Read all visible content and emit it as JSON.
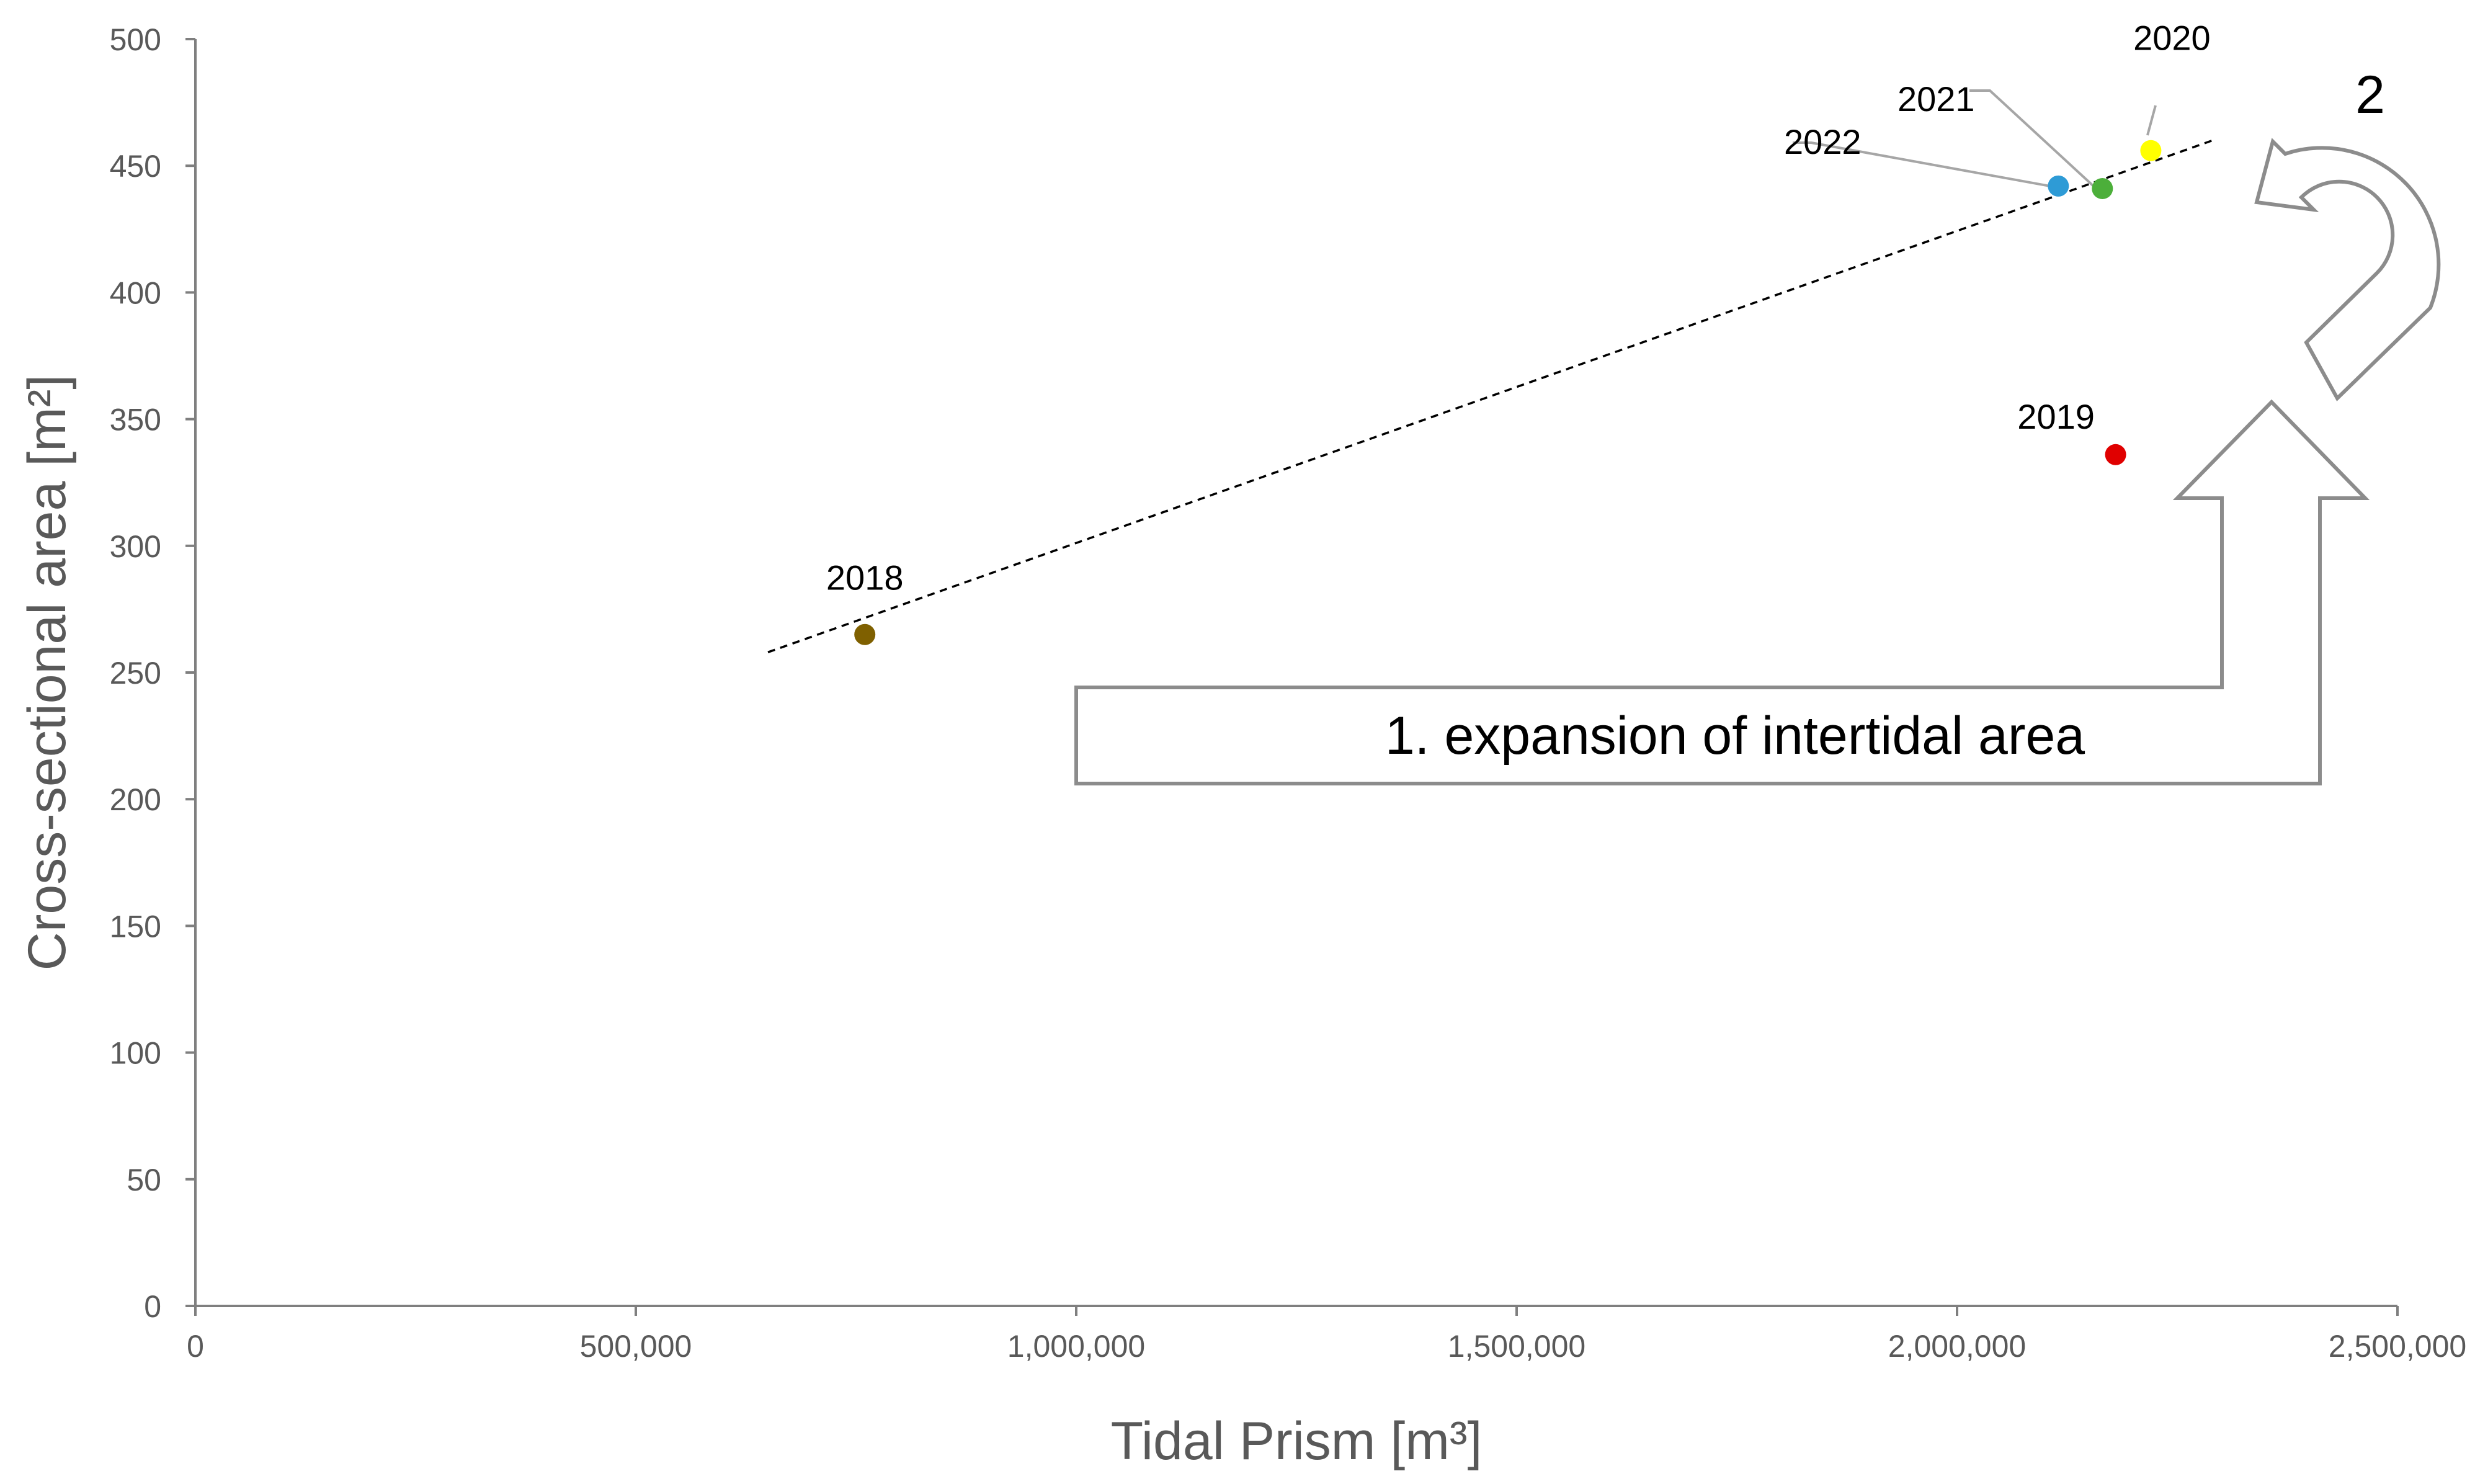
{
  "chart_data": {
    "type": "scatter",
    "title": "",
    "xlabel": "Tidal Prism [m³]",
    "ylabel": "Cross-sectional area [m²]",
    "xlim": [
      0,
      2500000
    ],
    "ylim": [
      0,
      500
    ],
    "x_ticks": [
      0,
      500000,
      1000000,
      1500000,
      2000000,
      2500000
    ],
    "x_tick_labels": [
      "0",
      "500,000",
      "1,000,000",
      "1,500,000",
      "2,000,000",
      "2,500,000"
    ],
    "y_ticks": [
      0,
      50,
      100,
      150,
      200,
      250,
      300,
      350,
      400,
      450,
      500
    ],
    "y_tick_labels": [
      "0",
      "50",
      "100",
      "150",
      "200",
      "250",
      "300",
      "350",
      "400",
      "450",
      "500"
    ],
    "grid": false,
    "legend": "none",
    "points": [
      {
        "label": "2018",
        "x": 760000,
        "y": 265,
        "color": "#7f6000"
      },
      {
        "label": "2019",
        "x": 2180000,
        "y": 336,
        "color": "#e00000"
      },
      {
        "label": "2020",
        "x": 2220000,
        "y": 456,
        "color": "#ffff00"
      },
      {
        "label": "2021",
        "x": 2165000,
        "y": 441,
        "color": "#4caf3a"
      },
      {
        "label": "2022",
        "x": 2115000,
        "y": 442,
        "color": "#2e9bd6"
      }
    ],
    "trendline": {
      "style": "dashed",
      "x": [
        650000,
        2290000
      ],
      "y": [
        258,
        460
      ],
      "color": "#000000"
    },
    "annotations": [
      {
        "id": "step-1",
        "text": "1. expansion of intertidal area",
        "shape": "bent-up-arrow"
      },
      {
        "id": "step-2",
        "text": "2",
        "shape": "u-turn-arrow"
      }
    ]
  }
}
